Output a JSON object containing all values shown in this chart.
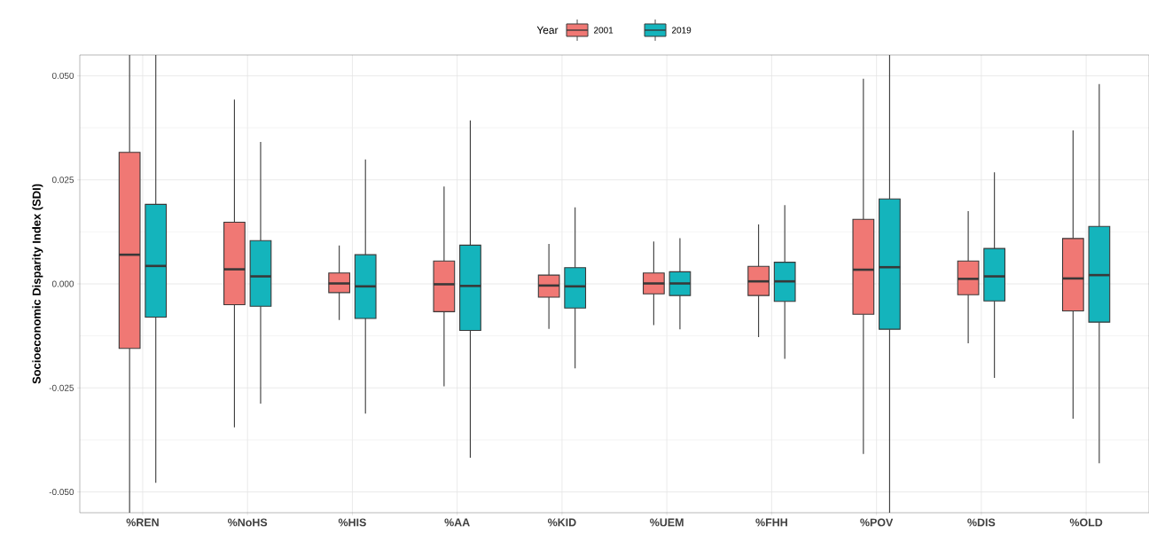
{
  "chart_data": {
    "type": "box",
    "ylabel": "Socioeconomic Disparity Index (SDI)",
    "legend_title": "Year",
    "legend": "top",
    "grid": true,
    "categories": [
      "%REN",
      "%NoHS",
      "%HIS",
      "%AA",
      "%KID",
      "%UEM",
      "%FHH",
      "%POV",
      "%DIS",
      "%OLD"
    ],
    "ylim": [
      -0.055,
      0.055
    ],
    "yticks": [
      {
        "value": -0.05,
        "label": "-0.050"
      },
      {
        "value": -0.025,
        "label": "-0.025"
      },
      {
        "value": 0,
        "label": "0.000"
      },
      {
        "value": 0.025,
        "label": "0.025"
      },
      {
        "value": 0.05,
        "label": "0.050"
      }
    ],
    "series": [
      {
        "name": "2001",
        "color": "#f07874",
        "boxes": [
          {
            "low": -0.055,
            "q1": -0.0155,
            "median": 0.007,
            "q3": 0.0316,
            "high": 0.055
          },
          {
            "low": -0.0345,
            "q1": -0.005,
            "median": 0.0035,
            "q3": 0.0148,
            "high": 0.0443
          },
          {
            "low": -0.0087,
            "q1": -0.0021,
            "median": 0.0001,
            "q3": 0.0026,
            "high": 0.0092
          },
          {
            "low": -0.0246,
            "q1": -0.0067,
            "median": -0.0001,
            "q3": 0.0055,
            "high": 0.0234
          },
          {
            "low": -0.0108,
            "q1": -0.0032,
            "median": -0.0004,
            "q3": 0.0021,
            "high": 0.0096
          },
          {
            "low": -0.0099,
            "q1": -0.0024,
            "median": 0.0001,
            "q3": 0.0026,
            "high": 0.0102
          },
          {
            "low": -0.0128,
            "q1": -0.0028,
            "median": 0.0006,
            "q3": 0.0042,
            "high": 0.0143
          },
          {
            "low": -0.0409,
            "q1": -0.0073,
            "median": 0.0034,
            "q3": 0.0155,
            "high": 0.0493
          },
          {
            "low": -0.0143,
            "q1": -0.0026,
            "median": 0.0012,
            "q3": 0.0055,
            "high": 0.0175
          },
          {
            "low": -0.0324,
            "q1": -0.0065,
            "median": 0.0013,
            "q3": 0.0109,
            "high": 0.0369
          }
        ]
      },
      {
        "name": "2019",
        "color": "#14b4bc",
        "boxes": [
          {
            "low": -0.0478,
            "q1": -0.008,
            "median": 0.0043,
            "q3": 0.0191,
            "high": 0.055
          },
          {
            "low": -0.0288,
            "q1": -0.0054,
            "median": 0.0018,
            "q3": 0.0104,
            "high": 0.0341
          },
          {
            "low": -0.0312,
            "q1": -0.0083,
            "median": -0.0006,
            "q3": 0.007,
            "high": 0.0299
          },
          {
            "low": -0.0418,
            "q1": -0.0112,
            "median": -0.0005,
            "q3": 0.0093,
            "high": 0.0393
          },
          {
            "low": -0.0203,
            "q1": -0.0058,
            "median": -0.0006,
            "q3": 0.0039,
            "high": 0.0184
          },
          {
            "low": -0.0109,
            "q1": -0.0028,
            "median": 0.0001,
            "q3": 0.0029,
            "high": 0.011
          },
          {
            "low": -0.018,
            "q1": -0.0042,
            "median": 0.0006,
            "q3": 0.0052,
            "high": 0.0189
          },
          {
            "low": -0.055,
            "q1": -0.0109,
            "median": 0.004,
            "q3": 0.0204,
            "high": 0.055
          },
          {
            "low": -0.0226,
            "q1": -0.0041,
            "median": 0.0018,
            "q3": 0.0085,
            "high": 0.0268
          },
          {
            "low": -0.0431,
            "q1": -0.0092,
            "median": 0.0021,
            "q3": 0.0138,
            "high": 0.048
          }
        ]
      }
    ]
  }
}
